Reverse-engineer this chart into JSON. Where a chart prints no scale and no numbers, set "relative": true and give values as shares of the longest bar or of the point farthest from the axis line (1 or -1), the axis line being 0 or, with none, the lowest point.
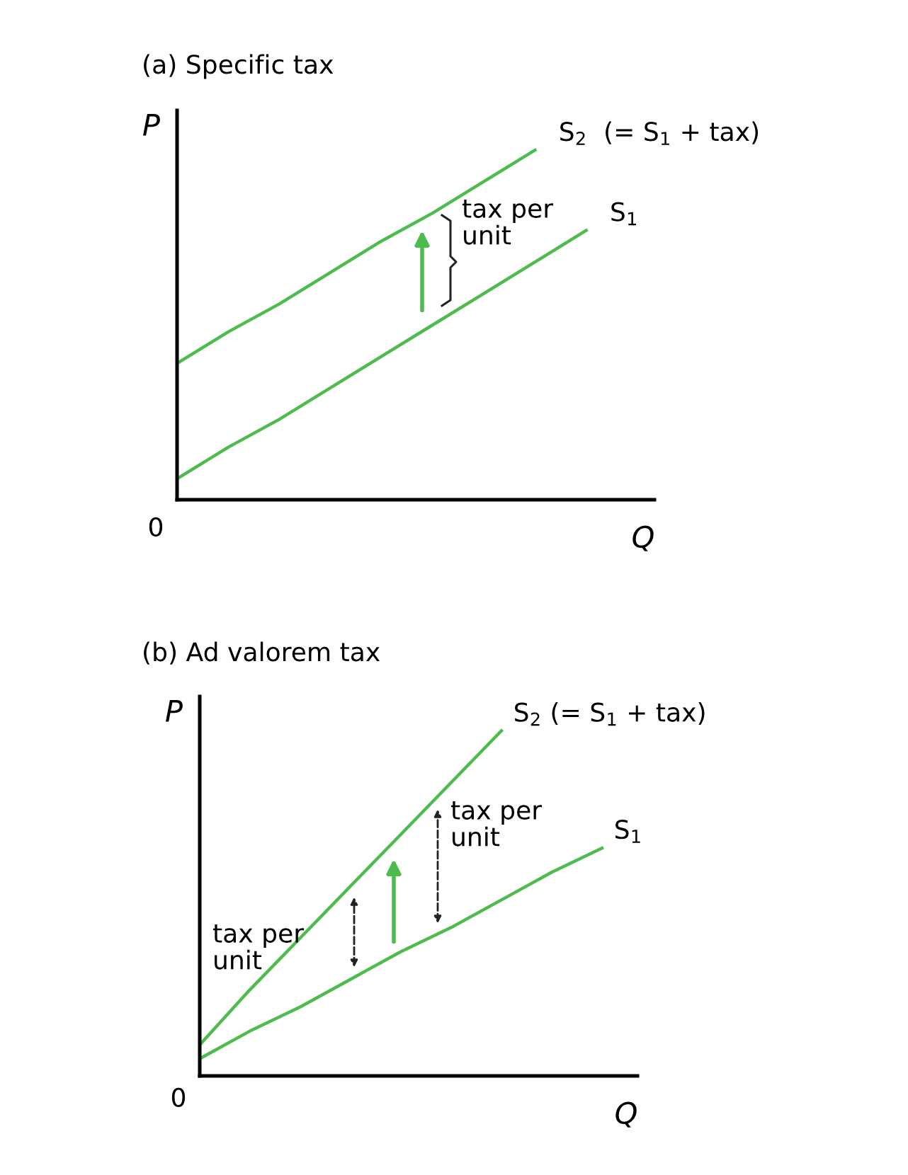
{
  "chart_data": [
    {
      "type": "line",
      "title": "(a) Specific tax",
      "xlabel": "Q",
      "ylabel": "P",
      "relative": true,
      "legend": false,
      "marker": "none",
      "line_style": "solid",
      "categories": [
        null,
        null,
        null,
        null,
        null,
        null,
        null,
        null,
        null
      ],
      "series": [
        {
          "name": "S$_{2}$  (= S$_{1}$ + tax)",
          "color": "#4dbb4d",
          "values": [
            0.39,
            0.48,
            0.56,
            0.65,
            0.74,
            0.82,
            0.91,
            1.0,
            null
          ]
        },
        {
          "name": "S$_{1}$",
          "color": "#4dbb4d",
          "values": [
            0.06,
            0.15,
            0.23,
            0.32,
            0.41,
            0.5,
            0.59,
            0.68,
            0.77
          ]
        }
      ],
      "annotations": [
        "tax per\nunit",
        "0"
      ]
    },
    {
      "type": "line",
      "title": "(b) Ad valorem tax",
      "xlabel": "Q",
      "ylabel": "P",
      "relative": true,
      "legend": false,
      "marker": "none",
      "line_style": "solid",
      "categories": [
        null,
        null,
        null,
        null,
        null,
        null,
        null,
        null,
        null
      ],
      "series": [
        {
          "name": "S$_{2}$ (= S$_{1}$ + tax)",
          "color": "#4dbb4d",
          "values": [
            0.09,
            0.25,
            0.4,
            0.55,
            0.7,
            0.85,
            1.0,
            null,
            null
          ]
        },
        {
          "name": "S$_{1}$",
          "color": "#4dbb4d",
          "values": [
            0.05,
            0.13,
            0.2,
            0.28,
            0.36,
            0.43,
            0.51,
            0.59,
            0.66
          ]
        }
      ],
      "annotations": [
        "tax per\nunit",
        "tax per\nunit",
        "0"
      ]
    }
  ]
}
